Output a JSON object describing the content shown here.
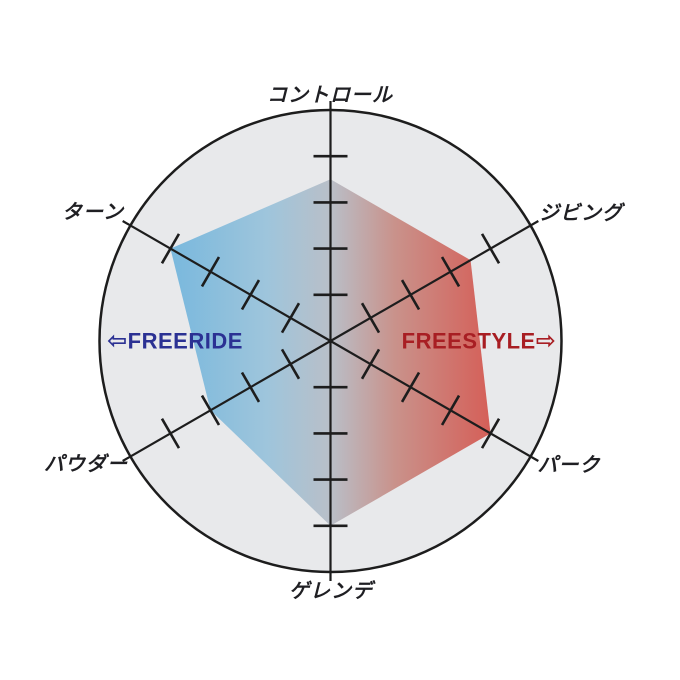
{
  "chart_data": {
    "type": "radar",
    "categories": [
      "コントロール",
      "ジビング",
      "パーク",
      "ゲレンデ",
      "パウダー",
      "ターン"
    ],
    "values": [
      3.5,
      3.5,
      4,
      4,
      3,
      4
    ],
    "max": 5,
    "tick_step": 1,
    "ticks_per_axis": 4,
    "grid": "circle-outline-with-axis-ticks",
    "legend": "none",
    "center_labels": {
      "left": {
        "arrow": "⇦",
        "text": "FREERIDE",
        "color": "#2b3193"
      },
      "right": {
        "text": "FREESTYLE",
        "arrow": "⇨",
        "color": "#a81e23"
      }
    },
    "style": {
      "background": "#ffffff",
      "circle_fill": "#e8e9eb",
      "line_color": "#1d1d1d",
      "label_color": "#1f1f23",
      "polygon_gradient_stops": [
        {
          "offset": 0,
          "color": "#79b8dd"
        },
        {
          "offset": 0.3,
          "color": "#9ec5dc"
        },
        {
          "offset": 0.5,
          "color": "#b9bfc8"
        },
        {
          "offset": 0.7,
          "color": "#c9928b"
        },
        {
          "offset": 1,
          "color": "#d55f58"
        }
      ]
    }
  }
}
